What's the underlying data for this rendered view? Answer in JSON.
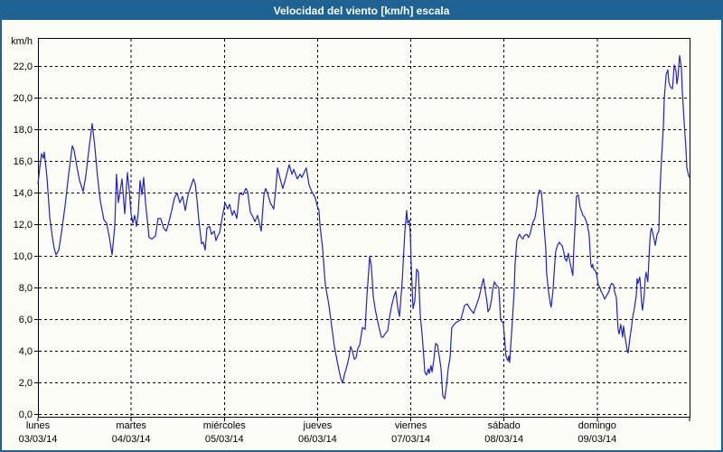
{
  "window": {
    "title": "Velocidad del viento [km/h] escala"
  },
  "colors": {
    "title_bar": "#1e6396",
    "window_border": "#24618e",
    "background": "#fdfdf7",
    "line": "#2222c8",
    "grid": "#000000",
    "text": "#000000"
  },
  "chart_data": {
    "type": "line",
    "title": "Velocidad del viento [km/h] escala",
    "ylabel": "km/h",
    "xlabel": "",
    "ylim": [
      0,
      23.8
    ],
    "grid": "dashed",
    "legend": "none",
    "line_color": "#2222c8",
    "grid_color": "#000000",
    "y_ticks": [
      {
        "value": 0,
        "label": "0,0"
      },
      {
        "value": 2,
        "label": "2,0"
      },
      {
        "value": 4,
        "label": "4,0"
      },
      {
        "value": 6,
        "label": "6,0"
      },
      {
        "value": 8,
        "label": "8,0"
      },
      {
        "value": 10,
        "label": "10,0"
      },
      {
        "value": 12,
        "label": "12,0"
      },
      {
        "value": 14,
        "label": "14,0"
      },
      {
        "value": 16,
        "label": "16,0"
      },
      {
        "value": 18,
        "label": "18,0"
      },
      {
        "value": 20,
        "label": "20,0"
      },
      {
        "value": 22,
        "label": "22,0"
      }
    ],
    "x_categories": [
      {
        "name": "lunes",
        "date": "03/03/14"
      },
      {
        "name": "martes",
        "date": "04/03/14"
      },
      {
        "name": "miércoles",
        "date": "05/03/14"
      },
      {
        "name": "jueves",
        "date": "06/03/14"
      },
      {
        "name": "viernes",
        "date": "07/03/14"
      },
      {
        "name": "sábado",
        "date": "08/03/14"
      },
      {
        "name": "domingo",
        "date": "09/03/14"
      }
    ],
    "x_unit": "days_since_2014-03-03",
    "points": [
      [
        0,
        14.6
      ],
      [
        0.019,
        15.6
      ],
      [
        0.039,
        16.5
      ],
      [
        0.058,
        16.2
      ],
      [
        0.068,
        16.6
      ],
      [
        0.097,
        15
      ],
      [
        0.126,
        12.5
      ],
      [
        0.155,
        11.2
      ],
      [
        0.175,
        10.5
      ],
      [
        0.194,
        10.1
      ],
      [
        0.223,
        10.4
      ],
      [
        0.252,
        11.5
      ],
      [
        0.291,
        13.2
      ],
      [
        0.33,
        15.2
      ],
      [
        0.368,
        17
      ],
      [
        0.388,
        16.7
      ],
      [
        0.417,
        15.7
      ],
      [
        0.446,
        14.8
      ],
      [
        0.485,
        14.1
      ],
      [
        0.514,
        15.1
      ],
      [
        0.543,
        16.6
      ],
      [
        0.582,
        18.4
      ],
      [
        0.611,
        16.9
      ],
      [
        0.64,
        15
      ],
      [
        0.669,
        13.5
      ],
      [
        0.708,
        12.3
      ],
      [
        0.737,
        12.1
      ],
      [
        0.766,
        11.2
      ],
      [
        0.795,
        10.1
      ],
      [
        0.824,
        11.9
      ],
      [
        0.843,
        15.2
      ],
      [
        0.863,
        13.4
      ],
      [
        0.902,
        14.9
      ],
      [
        0.931,
        12.7
      ],
      [
        0.96,
        15.3
      ],
      [
        0.979,
        14.2
      ],
      [
        0.999,
        12.7
      ],
      [
        1.018,
        12.1
      ],
      [
        1.037,
        12.6
      ],
      [
        1.057,
        11.9
      ],
      [
        1.076,
        12.8
      ],
      [
        1.096,
        14.8
      ],
      [
        1.115,
        13.9
      ],
      [
        1.134,
        15
      ],
      [
        1.154,
        13.4
      ],
      [
        1.173,
        12.3
      ],
      [
        1.192,
        11.2
      ],
      [
        1.222,
        11.1
      ],
      [
        1.26,
        11.3
      ],
      [
        1.289,
        12.4
      ],
      [
        1.318,
        12.4
      ],
      [
        1.348,
        11.8
      ],
      [
        1.377,
        11.6
      ],
      [
        1.406,
        12.2
      ],
      [
        1.435,
        12.9
      ],
      [
        1.464,
        13.7
      ],
      [
        1.493,
        14
      ],
      [
        1.522,
        13.4
      ],
      [
        1.551,
        13.8
      ],
      [
        1.58,
        12.9
      ],
      [
        1.61,
        13.9
      ],
      [
        1.639,
        14.4
      ],
      [
        1.668,
        14.9
      ],
      [
        1.687,
        14.6
      ],
      [
        1.707,
        13.5
      ],
      [
        1.726,
        12.3
      ],
      [
        1.755,
        10.8
      ],
      [
        1.774,
        10.9
      ],
      [
        1.794,
        10.4
      ],
      [
        1.813,
        11.8
      ],
      [
        1.842,
        11.9
      ],
      [
        1.862,
        11.4
      ],
      [
        1.891,
        11.6
      ],
      [
        1.91,
        11
      ],
      [
        1.929,
        11.3
      ],
      [
        1.949,
        11.5
      ],
      [
        1.968,
        12.2
      ],
      [
        1.988,
        12.8
      ],
      [
        2.007,
        13.4
      ],
      [
        2.036,
        13
      ],
      [
        2.055,
        13.3
      ],
      [
        2.085,
        12.6
      ],
      [
        2.104,
        12.9
      ],
      [
        2.133,
        12.4
      ],
      [
        2.162,
        14
      ],
      [
        2.201,
        13.9
      ],
      [
        2.23,
        14.3
      ],
      [
        2.249,
        14.1
      ],
      [
        2.278,
        12.8
      ],
      [
        2.307,
        12.5
      ],
      [
        2.327,
        12.2
      ],
      [
        2.356,
        12.6
      ],
      [
        2.395,
        11.6
      ],
      [
        2.424,
        13.9
      ],
      [
        2.443,
        14.3
      ],
      [
        2.463,
        14
      ],
      [
        2.492,
        13.4
      ],
      [
        2.511,
        13.2
      ],
      [
        2.53,
        13
      ],
      [
        2.55,
        14.2
      ],
      [
        2.569,
        15.6
      ],
      [
        2.598,
        14.9
      ],
      [
        2.627,
        14.3
      ],
      [
        2.656,
        14.9
      ],
      [
        2.695,
        15.8
      ],
      [
        2.724,
        15.2
      ],
      [
        2.744,
        15.5
      ],
      [
        2.783,
        14.9
      ],
      [
        2.812,
        15.2
      ],
      [
        2.831,
        15
      ],
      [
        2.879,
        15.6
      ],
      [
        2.909,
        14.5
      ],
      [
        2.938,
        14.1
      ],
      [
        2.976,
        13.7
      ],
      [
        2.996,
        13.2
      ],
      [
        3.015,
        12.9
      ],
      [
        3.025,
        12
      ],
      [
        3.054,
        10.5
      ],
      [
        3.073,
        9
      ],
      [
        3.083,
        8.2
      ],
      [
        3.102,
        7.6
      ],
      [
        3.122,
        6.9
      ],
      [
        3.151,
        5.6
      ],
      [
        3.18,
        4.3
      ],
      [
        3.219,
        3.1
      ],
      [
        3.248,
        2.3
      ],
      [
        3.267,
        2
      ],
      [
        3.287,
        2.5
      ],
      [
        3.316,
        3.1
      ],
      [
        3.335,
        3.6
      ],
      [
        3.355,
        4.3
      ],
      [
        3.374,
        4
      ],
      [
        3.393,
        3.5
      ],
      [
        3.413,
        3.6
      ],
      [
        3.432,
        4.2
      ],
      [
        3.452,
        4.4
      ],
      [
        3.481,
        5.5
      ],
      [
        3.51,
        5.4
      ],
      [
        3.529,
        7.5
      ],
      [
        3.548,
        9
      ],
      [
        3.558,
        10
      ],
      [
        3.577,
        9.4
      ],
      [
        3.597,
        7.5
      ],
      [
        3.616,
        6.7
      ],
      [
        3.655,
        5.6
      ],
      [
        3.684,
        4.9
      ],
      [
        3.703,
        4.9
      ],
      [
        3.723,
        5.1
      ],
      [
        3.752,
        5.3
      ],
      [
        3.771,
        6.1
      ],
      [
        3.791,
        6.8
      ],
      [
        3.82,
        7.5
      ],
      [
        3.839,
        7.8
      ],
      [
        3.859,
        6.8
      ],
      [
        3.878,
        6.2
      ],
      [
        3.907,
        8.4
      ],
      [
        3.936,
        11.6
      ],
      [
        3.956,
        12.9
      ],
      [
        3.965,
        12.1
      ],
      [
        3.985,
        12.3
      ],
      [
        3.995,
        11.4
      ],
      [
        4.004,
        9.5
      ],
      [
        4.024,
        6.7
      ],
      [
        4.043,
        7.2
      ],
      [
        4.062,
        9.2
      ],
      [
        4.082,
        9
      ],
      [
        4.101,
        6.3
      ],
      [
        4.121,
        5.1
      ],
      [
        4.14,
        3.6
      ],
      [
        4.15,
        2.7
      ],
      [
        4.169,
        2.5
      ],
      [
        4.188,
        2.9
      ],
      [
        4.198,
        2.6
      ],
      [
        4.217,
        3.1
      ],
      [
        4.227,
        2.7
      ],
      [
        4.246,
        3.4
      ],
      [
        4.266,
        4.5
      ],
      [
        4.285,
        4.4
      ],
      [
        4.305,
        3.7
      ],
      [
        4.324,
        2.9
      ],
      [
        4.343,
        1.2
      ],
      [
        4.363,
        1
      ],
      [
        4.382,
        1.8
      ],
      [
        4.401,
        2.9
      ],
      [
        4.421,
        3.6
      ],
      [
        4.44,
        5.5
      ],
      [
        4.479,
        5.8
      ],
      [
        4.508,
        5.9
      ],
      [
        4.537,
        6
      ],
      [
        4.576,
        6.9
      ],
      [
        4.605,
        7
      ],
      [
        4.634,
        6.7
      ],
      [
        4.673,
        6.4
      ],
      [
        4.702,
        6.9
      ],
      [
        4.731,
        7.4
      ],
      [
        4.77,
        8.4
      ],
      [
        4.78,
        8.6
      ],
      [
        4.799,
        7.8
      ],
      [
        4.818,
        7.1
      ],
      [
        4.828,
        6.5
      ],
      [
        4.847,
        6.7
      ],
      [
        4.867,
        7.3
      ],
      [
        4.876,
        7.8
      ],
      [
        4.896,
        8.4
      ],
      [
        4.915,
        8.2
      ],
      [
        4.934,
        8.1
      ],
      [
        4.944,
        8
      ],
      [
        4.963,
        6.1
      ],
      [
        4.973,
        5.9
      ],
      [
        4.992,
        5.8
      ],
      [
        5.012,
        4.4
      ],
      [
        5.021,
        3.7
      ],
      [
        5.041,
        3.4
      ],
      [
        5.051,
        3.7
      ],
      [
        5.06,
        3.3
      ],
      [
        5.089,
        5.9
      ],
      [
        5.109,
        7.8
      ],
      [
        5.118,
        9.5
      ],
      [
        5.138,
        11
      ],
      [
        5.157,
        11.3
      ],
      [
        5.167,
        11.4
      ],
      [
        5.186,
        11.2
      ],
      [
        5.205,
        11.1
      ],
      [
        5.215,
        11.3
      ],
      [
        5.244,
        11.4
      ],
      [
        5.264,
        11.2
      ],
      [
        5.283,
        11.5
      ],
      [
        5.302,
        12
      ],
      [
        5.312,
        12.2
      ],
      [
        5.331,
        12.4
      ],
      [
        5.351,
        13.1
      ],
      [
        5.361,
        13.7
      ],
      [
        5.38,
        14.2
      ],
      [
        5.399,
        14.1
      ],
      [
        5.409,
        13.5
      ],
      [
        5.428,
        12
      ],
      [
        5.448,
        10.5
      ],
      [
        5.457,
        9
      ],
      [
        5.477,
        7.8
      ],
      [
        5.496,
        7
      ],
      [
        5.506,
        6.8
      ],
      [
        5.525,
        7.8
      ],
      [
        5.544,
        9.5
      ],
      [
        5.554,
        10.3
      ],
      [
        5.573,
        10.7
      ],
      [
        5.593,
        10.9
      ],
      [
        5.603,
        10.8
      ],
      [
        5.622,
        10.7
      ],
      [
        5.641,
        10.3
      ],
      [
        5.651,
        9.9
      ],
      [
        5.67,
        9.7
      ],
      [
        5.69,
        10.2
      ],
      [
        5.709,
        9.6
      ],
      [
        5.738,
        8.8
      ],
      [
        5.748,
        10.3
      ],
      [
        5.767,
        12.5
      ],
      [
        5.777,
        13.8
      ],
      [
        5.796,
        13.9
      ],
      [
        5.816,
        13.1
      ],
      [
        5.835,
        12.8
      ],
      [
        5.845,
        12.6
      ],
      [
        5.864,
        12.5
      ],
      [
        5.883,
        12.2
      ],
      [
        5.893,
        12
      ],
      [
        5.912,
        11.4
      ],
      [
        5.932,
        9.5
      ],
      [
        5.941,
        9.3
      ],
      [
        5.951,
        9.5
      ],
      [
        5.961,
        9.2
      ],
      [
        5.98,
        9.1
      ],
      [
        5.992,
        8.9
      ],
      [
        6.011,
        8.2
      ],
      [
        6.031,
        8
      ],
      [
        6.04,
        7.8
      ],
      [
        6.06,
        7.6
      ],
      [
        6.079,
        7.3
      ],
      [
        6.089,
        7.4
      ],
      [
        6.108,
        7.6
      ],
      [
        6.127,
        7.8
      ],
      [
        6.137,
        8.1
      ],
      [
        6.156,
        8.3
      ],
      [
        6.176,
        8.2
      ],
      [
        6.185,
        7.8
      ],
      [
        6.205,
        7.4
      ],
      [
        6.224,
        5.4
      ],
      [
        6.234,
        5.1
      ],
      [
        6.253,
        5.7
      ],
      [
        6.272,
        4.9
      ],
      [
        6.282,
        5.6
      ],
      [
        6.301,
        4.8
      ],
      [
        6.321,
        4.1
      ],
      [
        6.331,
        3.9
      ],
      [
        6.35,
        4.8
      ],
      [
        6.369,
        5.6
      ],
      [
        6.379,
        6.1
      ],
      [
        6.398,
        6.7
      ],
      [
        6.418,
        7.5
      ],
      [
        6.427,
        8.6
      ],
      [
        6.437,
        8.3
      ],
      [
        6.456,
        8.7
      ],
      [
        6.466,
        8
      ],
      [
        6.476,
        7.1
      ],
      [
        6.485,
        6.6
      ],
      [
        6.505,
        7.6
      ],
      [
        6.514,
        8.6
      ],
      [
        6.524,
        9
      ],
      [
        6.543,
        8.4
      ],
      [
        6.564,
        10.9
      ],
      [
        6.574,
        11.6
      ],
      [
        6.583,
        11.8
      ],
      [
        6.603,
        11.3
      ],
      [
        6.613,
        11
      ],
      [
        6.622,
        10.7
      ],
      [
        6.642,
        11.4
      ],
      [
        6.661,
        11.6
      ],
      [
        6.671,
        13.9
      ],
      [
        6.69,
        16.2
      ],
      [
        6.71,
        18.3
      ],
      [
        6.719,
        20
      ],
      [
        6.739,
        21.5
      ],
      [
        6.758,
        21.8
      ],
      [
        6.768,
        21
      ],
      [
        6.787,
        20.7
      ],
      [
        6.807,
        20.6
      ],
      [
        6.816,
        21.3
      ],
      [
        6.826,
        22.1
      ],
      [
        6.845,
        21.7
      ],
      [
        6.855,
        20.9
      ],
      [
        6.865,
        21.3
      ],
      [
        6.884,
        22.7
      ],
      [
        6.903,
        21.9
      ],
      [
        6.913,
        20.4
      ],
      [
        6.932,
        18.5
      ],
      [
        6.952,
        16.8
      ],
      [
        6.961,
        15.6
      ],
      [
        6.981,
        15.1
      ],
      [
        6.99,
        15
      ]
    ]
  }
}
